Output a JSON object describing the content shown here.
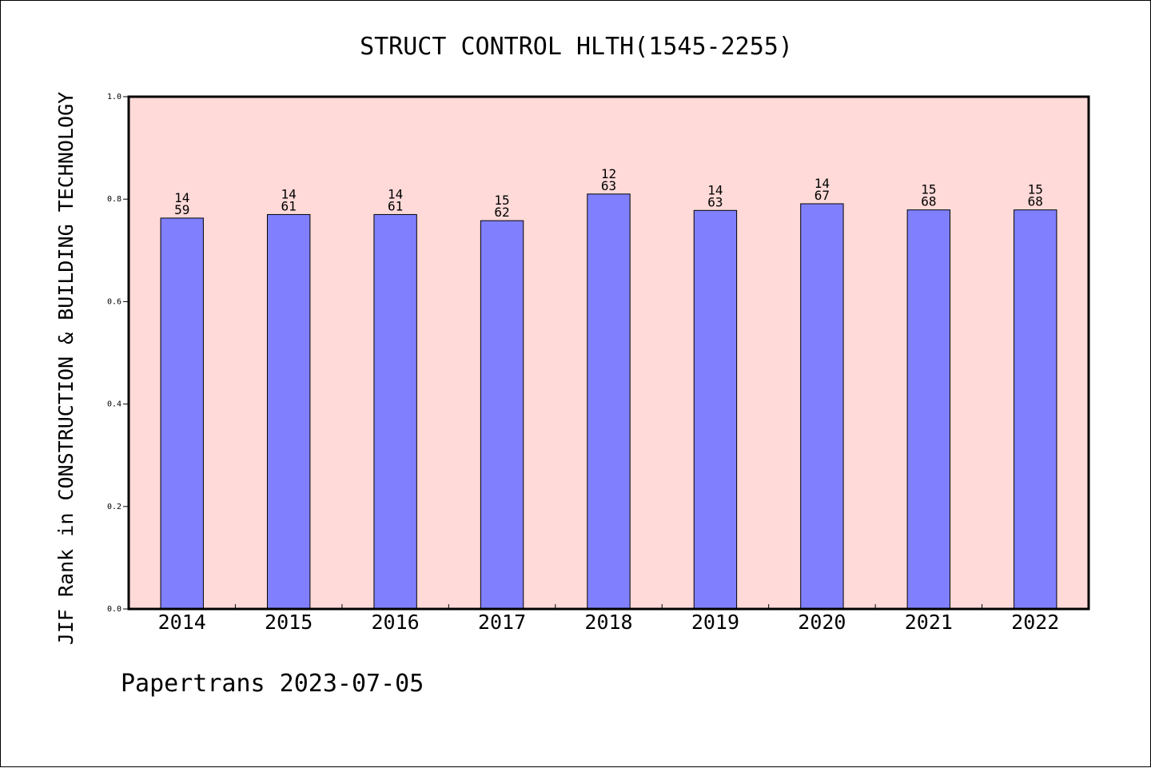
{
  "chart_data": {
    "type": "bar",
    "title": "STRUCT CONTROL HLTH(1545-2255)",
    "xlabel": "",
    "ylabel": "JIF Rank in CONSTRUCTION & BUILDING TECHNOLOGY",
    "ylim": [
      0,
      1.0
    ],
    "yticks": [
      "0.0",
      "0.2",
      "0.4",
      "0.6",
      "0.8",
      "1.0"
    ],
    "categories": [
      "2014",
      "2015",
      "2016",
      "2017",
      "2018",
      "2019",
      "2020",
      "2021",
      "2022"
    ],
    "values": [
      0.763,
      0.77,
      0.77,
      0.758,
      0.81,
      0.778,
      0.791,
      0.779,
      0.779
    ],
    "ranks": [
      "14",
      "14",
      "14",
      "15",
      "12",
      "14",
      "14",
      "15",
      "15"
    ],
    "totals": [
      "59",
      "61",
      "61",
      "62",
      "63",
      "63",
      "67",
      "68",
      "68"
    ],
    "grid": false,
    "legend": "none",
    "colors": {
      "plot_background": "#FFDAD8",
      "bar_fill": "#8080FF",
      "bar_edge": "#000000"
    }
  },
  "footer": "Papertrans 2023-07-05"
}
